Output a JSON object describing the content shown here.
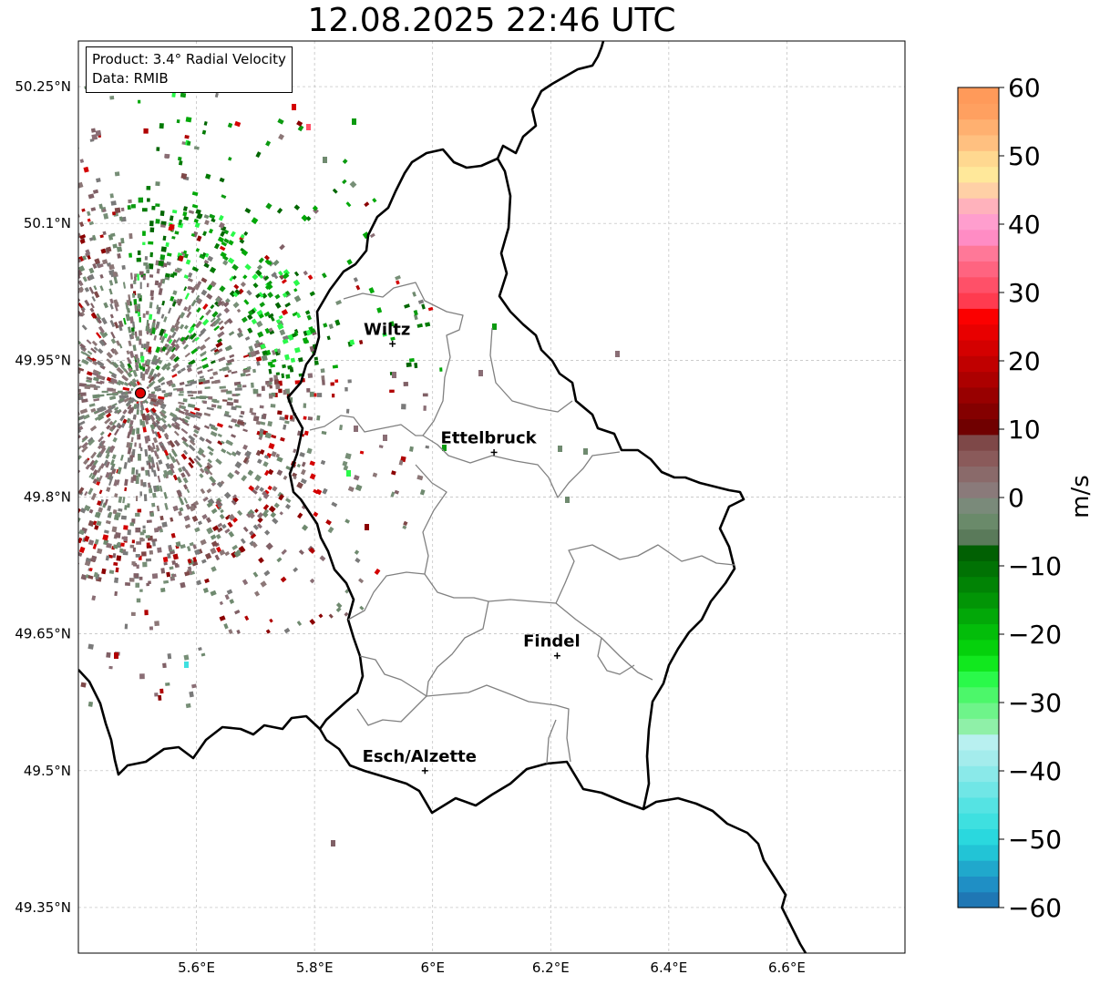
{
  "title": "12.08.2025 22:46 UTC",
  "info": {
    "product": "Product: 3.4° Radial Velocity",
    "source": "Data: RMIB"
  },
  "map": {
    "lon_range": [
      5.4,
      6.8
    ],
    "lat_range": [
      49.3,
      50.3
    ],
    "lon_ticks": [
      {
        "value": 5.6,
        "label": "5.6°E"
      },
      {
        "value": 5.8,
        "label": "5.8°E"
      },
      {
        "value": 6.0,
        "label": "6°E"
      },
      {
        "value": 6.2,
        "label": "6.2°E"
      },
      {
        "value": 6.4,
        "label": "6.4°E"
      },
      {
        "value": 6.6,
        "label": "6.6°E"
      }
    ],
    "lat_ticks": [
      {
        "value": 49.35,
        "label": "49.35°N"
      },
      {
        "value": 49.5,
        "label": "49.5°N"
      },
      {
        "value": 49.65,
        "label": "49.65°N"
      },
      {
        "value": 49.8,
        "label": "49.8°N"
      },
      {
        "value": 49.95,
        "label": "49.95°N"
      },
      {
        "value": 50.1,
        "label": "50.1°N"
      },
      {
        "value": 50.25,
        "label": "50.25°N"
      }
    ],
    "grid": true,
    "radar_site": {
      "lon": 5.505,
      "lat": 49.914
    },
    "cities": [
      {
        "name": "Wiltz",
        "lon": 5.932,
        "lat": 49.968
      },
      {
        "name": "Ettelbruck",
        "lon": 6.104,
        "lat": 49.849
      },
      {
        "name": "Findel",
        "lon": 6.211,
        "lat": 49.626
      },
      {
        "name": "Esch/Alzette",
        "lon": 5.987,
        "lat": 49.5
      }
    ]
  },
  "colorbar": {
    "label": "m/s",
    "min": -60,
    "max": 60,
    "ticks": [
      {
        "value": 60,
        "label": "60"
      },
      {
        "value": 50,
        "label": "50"
      },
      {
        "value": 40,
        "label": "40"
      },
      {
        "value": 30,
        "label": "30"
      },
      {
        "value": 20,
        "label": "20"
      },
      {
        "value": 10,
        "label": "10"
      },
      {
        "value": 0,
        "label": "0"
      },
      {
        "value": -10,
        "label": "−10"
      },
      {
        "value": -20,
        "label": "−20"
      },
      {
        "value": -30,
        "label": "−30"
      },
      {
        "value": -40,
        "label": "−40"
      },
      {
        "value": -50,
        "label": "−50"
      },
      {
        "value": -60,
        "label": "−60"
      }
    ],
    "colors": [
      "#1f77b4",
      "#1f8fc5",
      "#20a8cc",
      "#22c4d6",
      "#2ad8de",
      "#3ee0e0",
      "#55e3e3",
      "#70e6e6",
      "#8ae9e9",
      "#a4ecec",
      "#b8f0f0",
      "#8ff0a8",
      "#6ef48a",
      "#4cf76a",
      "#2af94a",
      "#11e81e",
      "#05d10c",
      "#03bd0a",
      "#02a808",
      "#029506",
      "#018305",
      "#017204",
      "#016003",
      "#5a7a5a",
      "#6a8a6a",
      "#7a8a7a",
      "#8a7a7a",
      "#8a6a6a",
      "#8a5a5a",
      "#7e4848",
      "#700000",
      "#840000",
      "#980000",
      "#ac0000",
      "#c00000",
      "#d40000",
      "#e80000",
      "#fb0000",
      "#ff3b4f",
      "#ff5068",
      "#ff6480",
      "#ff7898",
      "#ff8cc4",
      "#ff9ece",
      "#ffb2bc",
      "#ffd0a6",
      "#ffe89a",
      "#ffd890",
      "#ffc080",
      "#ffb070",
      "#ffa060",
      "#ff9a5a"
    ]
  }
}
